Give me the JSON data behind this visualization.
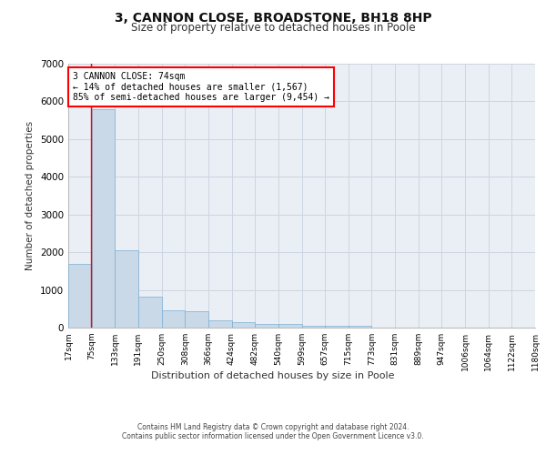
{
  "title": "3, CANNON CLOSE, BROADSTONE, BH18 8HP",
  "subtitle": "Size of property relative to detached houses in Poole",
  "xlabel": "Distribution of detached houses by size in Poole",
  "ylabel": "Number of detached properties",
  "footer_line1": "Contains HM Land Registry data © Crown copyright and database right 2024.",
  "footer_line2": "Contains public sector information licensed under the Open Government Licence v3.0.",
  "bar_color": "#c9d9e8",
  "bar_edge_color": "#7bafd4",
  "annotation_line1": "3 CANNON CLOSE: 74sqm",
  "annotation_line2": "← 14% of detached houses are smaller (1,567)",
  "annotation_line3": "85% of semi-detached houses are larger (9,454) →",
  "annotation_box_color": "white",
  "annotation_box_edge_color": "red",
  "vline_x": 74,
  "vline_color": "red",
  "bins": [
    17,
    75,
    133,
    191,
    250,
    308,
    366,
    424,
    482,
    540,
    599,
    657,
    715,
    773,
    831,
    889,
    947,
    1006,
    1064,
    1122,
    1180
  ],
  "bin_labels": [
    "17sqm",
    "75sqm",
    "133sqm",
    "191sqm",
    "250sqm",
    "308sqm",
    "366sqm",
    "424sqm",
    "482sqm",
    "540sqm",
    "599sqm",
    "657sqm",
    "715sqm",
    "773sqm",
    "831sqm",
    "889sqm",
    "947sqm",
    "1006sqm",
    "1064sqm",
    "1122sqm",
    "1180sqm"
  ],
  "values": [
    1700,
    5800,
    2050,
    820,
    450,
    440,
    200,
    145,
    95,
    95,
    55,
    45,
    45,
    0,
    0,
    0,
    0,
    0,
    0,
    0
  ],
  "ylim": [
    0,
    7000
  ],
  "yticks": [
    0,
    1000,
    2000,
    3000,
    4000,
    5000,
    6000,
    7000
  ],
  "grid_color": "#cdd5e0",
  "bg_color": "#eaeff6",
  "title_fontsize": 10,
  "subtitle_fontsize": 8.5
}
